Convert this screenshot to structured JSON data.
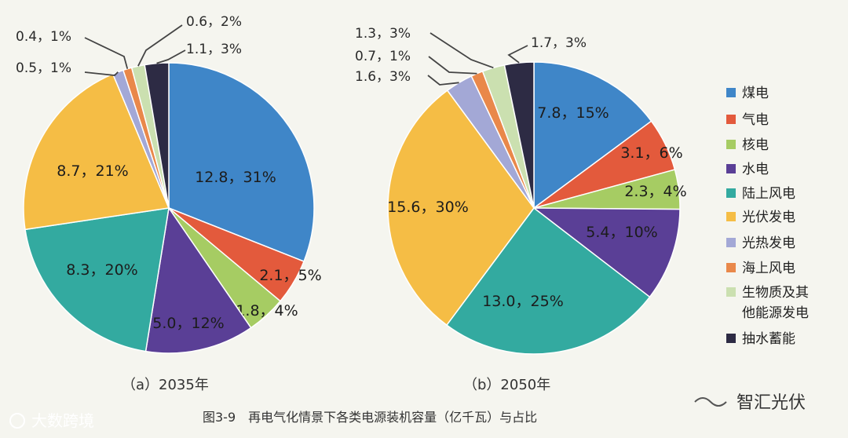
{
  "chart_data": [
    {
      "type": "pie",
      "subtitle": "（a）2035年",
      "slices": [
        {
          "series": "煤电",
          "value": 12.8,
          "label": "12.8，31%"
        },
        {
          "series": "气电",
          "value": 2.1,
          "label": "2.1，5%"
        },
        {
          "series": "核电",
          "value": 1.8,
          "label": "1.8，4%"
        },
        {
          "series": "水电",
          "value": 5.0,
          "label": "5.0，12%"
        },
        {
          "series": "陆上风电",
          "value": 8.3,
          "label": "8.3，20%"
        },
        {
          "series": "光伏发电",
          "value": 8.7,
          "label": "8.7，21%"
        },
        {
          "series": "光热发电",
          "value": 0.5,
          "label": "0.5，1%"
        },
        {
          "series": "海上风电",
          "value": 0.4,
          "label": "0.4，1%"
        },
        {
          "series": "生物质及其他能源发电",
          "value": 0.6,
          "label": "0.6，2%"
        },
        {
          "series": "抽水蓄能",
          "value": 1.1,
          "label": "1.1，3%"
        }
      ]
    },
    {
      "type": "pie",
      "subtitle": "（b）2050年",
      "slices": [
        {
          "series": "煤电",
          "value": 7.8,
          "label": "7.8，15%"
        },
        {
          "series": "气电",
          "value": 3.1,
          "label": "3.1，6%"
        },
        {
          "series": "核电",
          "value": 2.3,
          "label": "2.3，4%"
        },
        {
          "series": "水电",
          "value": 5.4,
          "label": "5.4，10%"
        },
        {
          "series": "陆上风电",
          "value": 13.0,
          "label": "13.0，25%"
        },
        {
          "series": "光伏发电",
          "value": 15.6,
          "label": "15.6，30%"
        },
        {
          "series": "光热发电",
          "value": 1.6,
          "label": "1.6，3%"
        },
        {
          "series": "海上风电",
          "value": 0.7,
          "label": "0.7，1%"
        },
        {
          "series": "生物质及其他能源发电",
          "value": 1.3,
          "label": "1.3，3%"
        },
        {
          "series": "抽水蓄能",
          "value": 1.7,
          "label": "1.7，3%"
        }
      ]
    }
  ],
  "legend": [
    {
      "label": "煤电",
      "color": "#3f86c8"
    },
    {
      "label": "气电",
      "color": "#e35a3c"
    },
    {
      "label": "核电",
      "color": "#a6cc63"
    },
    {
      "label": "水电",
      "color": "#5a3f96"
    },
    {
      "label": "陆上风电",
      "color": "#33aaa0"
    },
    {
      "label": "光伏发电",
      "color": "#f5bd45"
    },
    {
      "label": "光热发电",
      "color": "#a3a8d6"
    },
    {
      "label": "海上风电",
      "color": "#e9884a"
    },
    {
      "label": "生物质及其他能源发电",
      "color": "#cbe0b0"
    },
    {
      "label": "抽水蓄能",
      "color": "#2d2b44"
    }
  ],
  "caption": "图3-9　再电气化情景下各类电源装机容量（亿千瓦）与占比",
  "watermark_left": "大数跨境",
  "watermark_right": "智汇光伏"
}
